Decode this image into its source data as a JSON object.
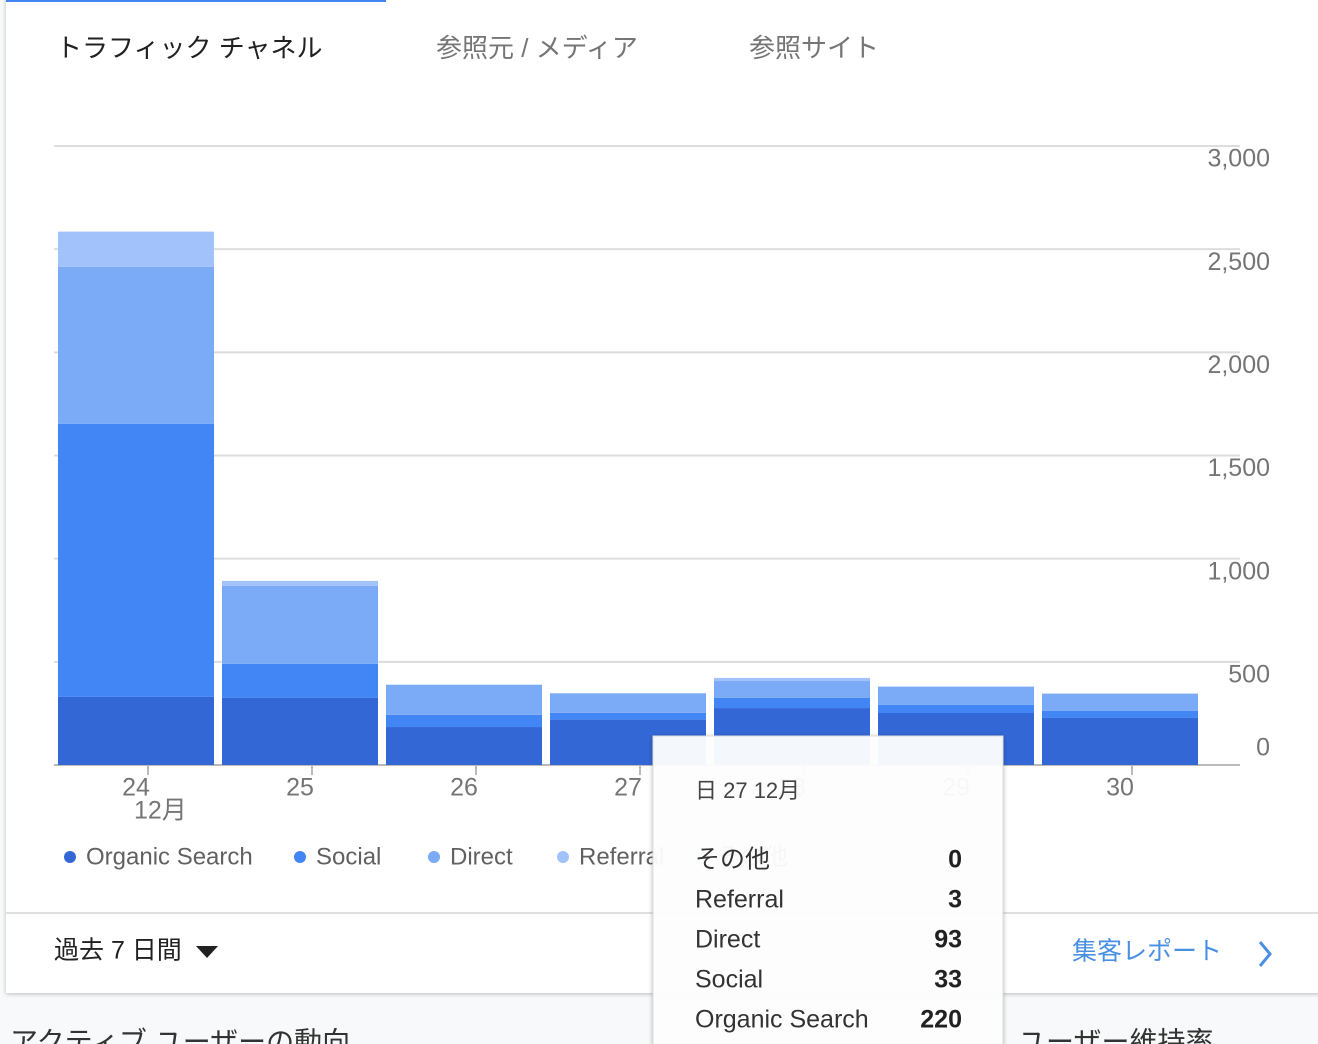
{
  "ui": {
    "tabs": [
      "トラフィック チャネル",
      "参照元 / メディア",
      "参照サイト"
    ],
    "period": "過去 7 日間",
    "report_link": "集客レポート",
    "next_cards": [
      "アクティブ ユーザーの動向",
      "ユーザー維持率"
    ],
    "tooltip": {
      "title": "日 27 12月"
    }
  },
  "chart_data": {
    "type": "stacked_bar",
    "categories": [
      "24",
      "25",
      "26",
      "27",
      "28",
      "29",
      "30"
    ],
    "month_label": "12月",
    "series": [
      {
        "name": "Organic Search",
        "color": "#3367d6",
        "values": [
          330,
          325,
          184,
          220,
          276,
          252,
          228
        ]
      },
      {
        "name": "Social",
        "color": "#4285f4",
        "values": [
          1324,
          165,
          59,
          33,
          49,
          39,
          34
        ]
      },
      {
        "name": "Direct",
        "color": "#7baaf7",
        "values": [
          761,
          378,
          145,
          93,
          82,
          87,
          82
        ]
      },
      {
        "name": "Referral",
        "color": "#a1c2fa",
        "values": [
          170,
          24,
          2,
          3,
          15,
          3,
          3
        ]
      },
      {
        "name": "その他",
        "color": "#c6dafc",
        "values": [
          0,
          0,
          0,
          0,
          0,
          0,
          0
        ]
      }
    ],
    "ylim": [
      0,
      3000
    ],
    "yticks": [
      0,
      500,
      {
        "value": 1000,
        "label": "1,000"
      },
      {
        "value": 1500,
        "label": "1,500"
      },
      {
        "value": 2000,
        "label": "2,000"
      },
      {
        "value": 2500,
        "label": "2,500"
      },
      {
        "value": 3000,
        "label": "3,000"
      }
    ],
    "grid": true,
    "legend": "bottom"
  }
}
